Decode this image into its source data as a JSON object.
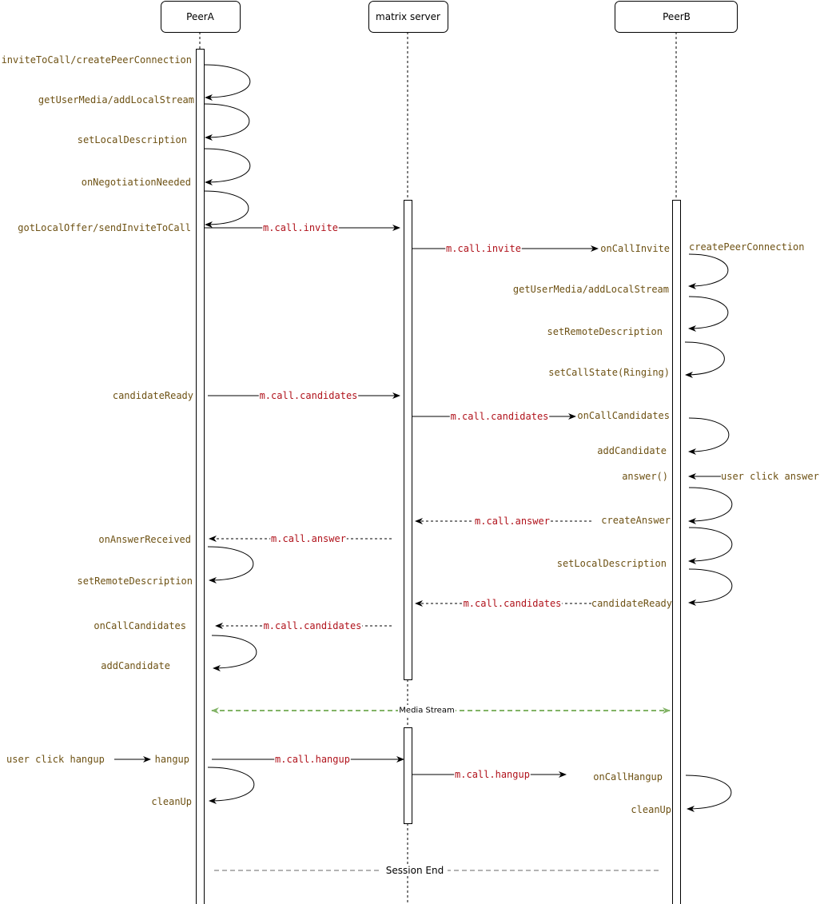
{
  "colors": {
    "method": "#6e5214",
    "message": "#b0121b",
    "line": "#000000",
    "media": "#82b366",
    "session": "#b3b3b3"
  },
  "participants": [
    {
      "id": "peerA",
      "label": "PeerA"
    },
    {
      "id": "server",
      "label": "matrix server"
    },
    {
      "id": "peerB",
      "label": "PeerB"
    }
  ],
  "peerA_labels": [
    "inviteToCall/createPeerConnection",
    "getUserMedia/addLocalStream",
    "setLocalDescription",
    "onNegotiationNeeded",
    "gotLocalOffer/sendInviteToCall",
    "candidateReady",
    "onAnswerReceived",
    "setRemoteDescription",
    "onCallCandidates",
    "addCandidate",
    "user click hangup",
    "hangup",
    "cleanUp"
  ],
  "peerB_labels": [
    "onCallInvite",
    "createPeerConnection",
    "getUserMedia/addLocalStream",
    "setRemoteDescription",
    "setCallState(Ringing)",
    "onCallCandidates",
    "addCandidate",
    "answer()",
    "user click answer",
    "createAnswer",
    "setLocalDescription",
    "candidateReady",
    "onCallHangup",
    "cleanUp"
  ],
  "messages": [
    {
      "label": "m.call.invite",
      "from": "peerA",
      "to": "server",
      "style": "solid"
    },
    {
      "label": "m.call.invite",
      "from": "server",
      "to": "peerB",
      "style": "solid"
    },
    {
      "label": "m.call.candidates",
      "from": "peerA",
      "to": "server",
      "style": "solid"
    },
    {
      "label": "m.call.candidates",
      "from": "server",
      "to": "peerB",
      "style": "solid"
    },
    {
      "label": "m.call.answer",
      "from": "peerB",
      "to": "server",
      "style": "dashed"
    },
    {
      "label": "m.call.answer",
      "from": "server",
      "to": "peerA",
      "style": "dashed"
    },
    {
      "label": "m.call.candidates",
      "from": "peerB",
      "to": "server",
      "style": "dashed"
    },
    {
      "label": "m.call.candidates",
      "from": "server",
      "to": "peerA",
      "style": "dashed"
    },
    {
      "label": "m.call.hangup",
      "from": "peerA",
      "to": "server",
      "style": "solid"
    },
    {
      "label": "m.call.hangup",
      "from": "server",
      "to": "peerB",
      "style": "solid"
    }
  ],
  "media_stream": {
    "label": "Media Stream"
  },
  "session_end": {
    "label": "Session End"
  }
}
